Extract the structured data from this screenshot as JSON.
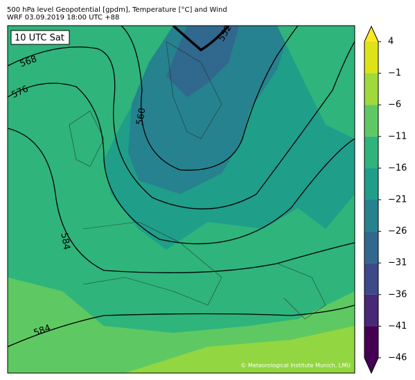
{
  "header": {
    "line1": "500 hPa level Geopotential [gpdm], Temperature [°C] and Wind",
    "line2": "WRF 03.09.2019 18:00 UTC +88"
  },
  "map": {
    "time_label": "10 UTC Sat",
    "contour_labels": [
      "552",
      "560",
      "568",
      "576",
      "584",
      "584"
    ],
    "credit": "© Meteorological Institute Munich, LMU"
  },
  "colorbar": {
    "ticks": [
      4,
      {
        "value": -1,
        "label": "−1"
      },
      {
        "value": -6,
        "label": "−6"
      },
      {
        "value": -11,
        "label": "−11"
      },
      {
        "value": -16,
        "label": "−16"
      },
      {
        "value": -21,
        "label": "−21"
      },
      {
        "value": -26,
        "label": "−26"
      },
      {
        "value": -31,
        "label": "−31"
      },
      {
        "value": -36,
        "label": "−36"
      },
      {
        "value": -41,
        "label": "−41"
      },
      {
        "value": -46,
        "label": "−46"
      }
    ],
    "colors": [
      "#dde318",
      "#9fda3a",
      "#5ec962",
      "#2fb47c",
      "#1f9e89",
      "#26828e",
      "#31688e",
      "#3e4989",
      "#482878",
      "#440154"
    ],
    "over_color": "#fde725",
    "under_color": "#440154"
  }
}
